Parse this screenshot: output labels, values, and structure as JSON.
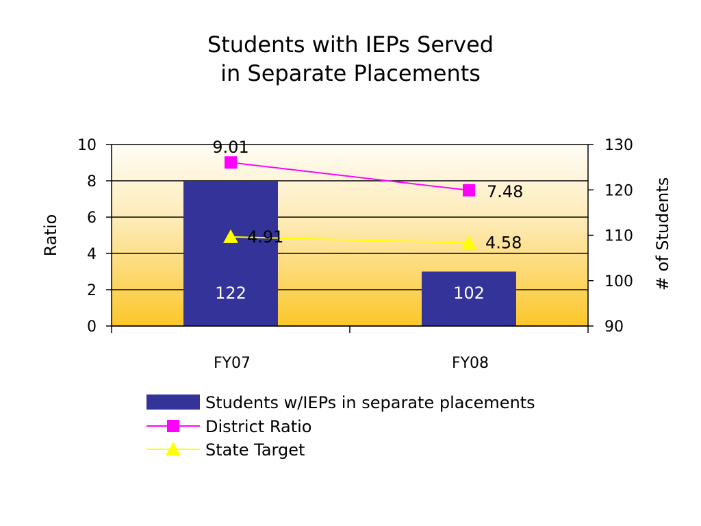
{
  "chart_data": {
    "type": "bar",
    "title_line1": "Students with IEPs Served",
    "title_line2": "in Separate Placements",
    "categories": [
      "FY07",
      "FY08"
    ],
    "ylabel": "Ratio",
    "y2label": "# of Students",
    "ylim": [
      0,
      10
    ],
    "y_ticks": [
      0,
      2,
      4,
      6,
      8,
      10
    ],
    "y2lim": [
      90,
      130
    ],
    "y2_ticks": [
      90,
      100,
      110,
      120,
      130
    ],
    "grid": true,
    "legend_position": "bottom",
    "series": [
      {
        "name": "Students w/IEPs  in separate placements",
        "kind": "bar",
        "axis": "secondary",
        "values": [
          122,
          102
        ],
        "labels": [
          "122",
          "102"
        ],
        "color": "#333399"
      },
      {
        "name": "District Ratio",
        "kind": "line",
        "marker": "square",
        "axis": "primary",
        "values": [
          9.01,
          7.48
        ],
        "labels": [
          "9.01",
          "7.48"
        ],
        "color": "#ff00ff"
      },
      {
        "name": "State Target",
        "kind": "line",
        "marker": "triangle",
        "axis": "primary",
        "values": [
          4.91,
          4.58
        ],
        "labels": [
          "4.91",
          "4.58"
        ],
        "color": "#ffff00"
      }
    ],
    "plot_background_colors": [
      "#fffdf7",
      "#fcc72a"
    ]
  }
}
